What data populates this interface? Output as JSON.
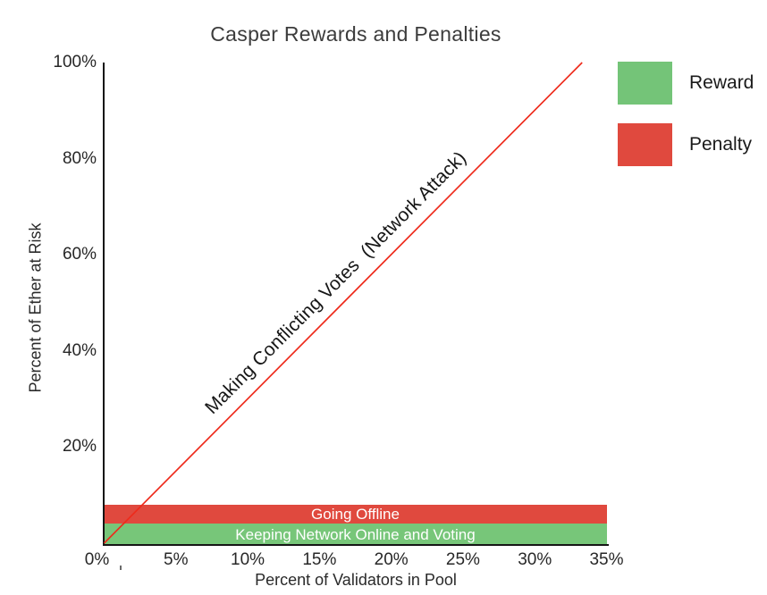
{
  "title": "Casper Rewards and Penalties",
  "axes": {
    "x": {
      "label": "Percent of Validators in Pool"
    },
    "y": {
      "label": "Percent of Ether at Risk"
    }
  },
  "legend": {
    "position": "outside-upper-right",
    "entries": [
      {
        "label": "Reward",
        "color": "#74c478"
      },
      {
        "label": "Penalty",
        "color": "#e0493e"
      }
    ]
  },
  "colors": {
    "reward_green": "#74c478",
    "penalty_red": "#e0493e",
    "line_red": "#ee2b1c",
    "band_text": "#ffffff",
    "axis": "#151515"
  },
  "chart_data": {
    "type": "line",
    "title": "Casper Rewards and Penalties",
    "xlabel": "Percent of Validators in Pool",
    "ylabel": "Percent of Ether at Risk",
    "xlim": [
      0,
      35
    ],
    "ylim": [
      0,
      100
    ],
    "x_ticks": [
      0,
      5,
      10,
      15,
      20,
      25,
      30,
      35
    ],
    "x_tick_labels": [
      "0%",
      "5%",
      "10%",
      "15%",
      "20%",
      "25%",
      "30%",
      "35%"
    ],
    "y_ticks": [
      20,
      40,
      60,
      80,
      100
    ],
    "y_tick_labels": [
      "20%",
      "40%",
      "60%",
      "80%",
      "100%"
    ],
    "grid": false,
    "series": [
      {
        "name": "Making Conflicting Votes  (Network Attack)",
        "kind": "line",
        "color": "#ee2b1c",
        "x": [
          0,
          33.3
        ],
        "y": [
          0,
          100
        ],
        "slope_y_per_x": 3,
        "label_along_line": true
      }
    ],
    "bands": [
      {
        "name": "Going Offline",
        "category": "penalty",
        "color": "#e0493e",
        "x_range": [
          0,
          35
        ],
        "y_range": [
          4,
          8
        ],
        "text_color": "#ffffff"
      },
      {
        "name": "Keeping Network Online and Voting",
        "category": "reward",
        "color": "#77c679",
        "x_range": [
          0,
          35
        ],
        "y_range": [
          0,
          4
        ],
        "text_color": "#ffffff"
      }
    ]
  }
}
